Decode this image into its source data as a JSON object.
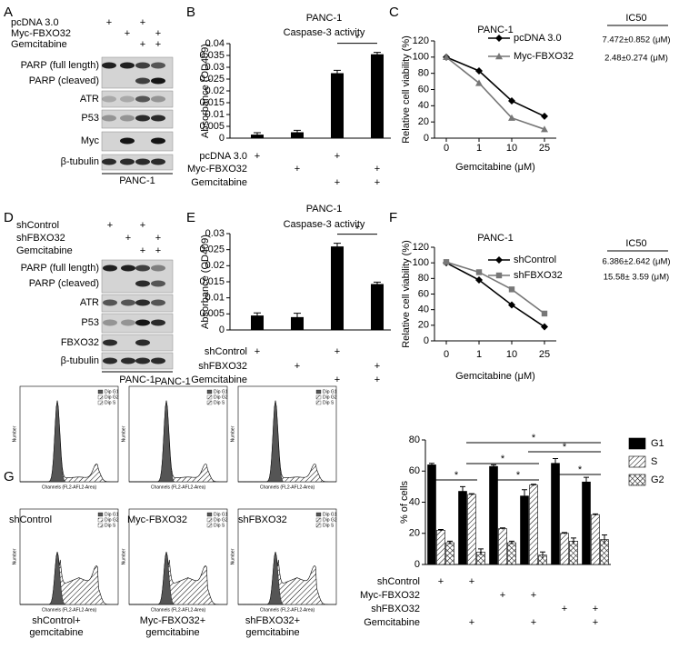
{
  "panel_labels": [
    "A",
    "B",
    "C",
    "D",
    "E",
    "F",
    "G"
  ],
  "blots": [
    {
      "treatments": [
        {
          "label": "pcDNA 3.0",
          "marks": [
            "+",
            null,
            "+",
            null
          ]
        },
        {
          "label": "Myc-FBXO32",
          "marks": [
            null,
            "+",
            null,
            "+"
          ]
        },
        {
          "label": "Gemcitabine",
          "marks": [
            null,
            null,
            "+",
            "+"
          ]
        }
      ],
      "rows": [
        "PARP (full length)",
        "PARP (cleaved)",
        "ATR",
        "P53",
        "Myc",
        "β-tubulin"
      ],
      "cell_line": "PANC-1"
    },
    {
      "treatments": [
        {
          "label": "shControl",
          "marks": [
            "+",
            null,
            "+",
            null
          ]
        },
        {
          "label": "shFBXO32",
          "marks": [
            null,
            "+",
            null,
            "+"
          ]
        },
        {
          "label": "Gemcitabine",
          "marks": [
            null,
            null,
            "+",
            "+"
          ]
        }
      ],
      "rows": [
        "PARP (full length)",
        "PARP (cleaved)",
        "ATR",
        "P53",
        "FBXO32",
        "β-tubulin"
      ],
      "cell_line": "PANC-1"
    }
  ],
  "flow": {
    "title": "PANC-1",
    "x_label": "Channels (FL2-AFL2-Area)",
    "y_label": "Number",
    "legend": [
      "Dip G1",
      "Dip G2",
      "Dip S"
    ],
    "row_labels": [
      "shControl",
      "Myc-FBXO32",
      "shFBXO32"
    ],
    "captions": [
      [
        "shControl+",
        "gemcitabine"
      ],
      [
        "Myc-FBXO32+",
        "gemcitabine"
      ],
      [
        "shFBXO32+",
        "gemcitabine"
      ]
    ]
  },
  "chart_data": [
    {
      "type": "bar",
      "title": "PANC-1",
      "subtitle": "Caspase-3 activity",
      "y_label": "Absorbance (OD409)",
      "values": [
        0.0015,
        0.0025,
        0.0275,
        0.0355
      ],
      "errors": [
        0.0008,
        0.0008,
        0.0012,
        0.0008
      ],
      "color": "#000000",
      "ylim": [
        0,
        0.04
      ],
      "yticks": [
        0,
        0.005,
        0.01,
        0.015,
        0.02,
        0.025,
        0.03,
        0.035,
        0.04
      ],
      "significance": "*",
      "treatments": [
        {
          "label": "pcDNA 3.0",
          "marks": [
            "+",
            null,
            "+",
            null
          ]
        },
        {
          "label": "Myc-FBXO32",
          "marks": [
            null,
            "+",
            null,
            "+"
          ]
        },
        {
          "label": "Gemcitabine",
          "marks": [
            null,
            null,
            "+",
            "+"
          ]
        }
      ]
    },
    {
      "type": "line",
      "title": "PANC-1",
      "x_label": "Gemcitabine (μM)",
      "y_label": "Relative cell viability (%)",
      "categories": [
        "0",
        "1",
        "10",
        "25"
      ],
      "ylim": [
        0,
        120
      ],
      "yticks": [
        0,
        20,
        40,
        60,
        80,
        100,
        120
      ],
      "ic50_title": "IC50",
      "series": [
        {
          "name": "pcDNA 3.0",
          "color": "#000000",
          "marker": "diamond",
          "values": [
            100,
            83,
            46,
            27
          ],
          "ic50": "7.472±0.852 (μM)"
        },
        {
          "name": "Myc-FBXO32",
          "color": "#777777",
          "marker": "triangle",
          "values": [
            100,
            68,
            25,
            11
          ],
          "ic50": "2.48±0.274 (μM)"
        }
      ]
    },
    {
      "type": "bar",
      "title": "PANC-1",
      "subtitle": "Caspase-3 activity",
      "y_label": "Absorbance (OD409)",
      "values": [
        0.0045,
        0.004,
        0.026,
        0.0143
      ],
      "errors": [
        0.0008,
        0.0012,
        0.001,
        0.0006
      ],
      "color": "#000000",
      "ylim": [
        0,
        0.03
      ],
      "yticks": [
        0,
        0.005,
        0.01,
        0.015,
        0.02,
        0.025,
        0.03
      ],
      "significance": "*",
      "treatments": [
        {
          "label": "shControl",
          "marks": [
            "+",
            null,
            "+",
            null
          ]
        },
        {
          "label": "shFBXO32",
          "marks": [
            null,
            "+",
            null,
            "+"
          ]
        },
        {
          "label": "Gemcitabine",
          "marks": [
            null,
            null,
            "+",
            "+"
          ]
        }
      ]
    },
    {
      "type": "line",
      "title": "PANC-1",
      "x_label": "Gemcitabine (μM)",
      "y_label": "Relative cell viability (%)",
      "categories": [
        "0",
        "1",
        "10",
        "25"
      ],
      "ylim": [
        0,
        120
      ],
      "yticks": [
        0,
        20,
        40,
        60,
        80,
        100,
        120
      ],
      "ic50_title": "IC50",
      "series": [
        {
          "name": "shControl",
          "color": "#000000",
          "marker": "diamond",
          "values": [
            100,
            78,
            46,
            18
          ],
          "ic50": "6.386±2.642 (μM)"
        },
        {
          "name": "shFBXO32",
          "color": "#777777",
          "marker": "square",
          "values": [
            101,
            88,
            66,
            35
          ],
          "ic50": "15.58± 3.59 (μM)"
        }
      ]
    },
    {
      "type": "grouped_bar",
      "y_label": "% of cells",
      "ylim": [
        0,
        80
      ],
      "yticks": [
        0,
        20,
        40,
        60,
        80
      ],
      "significance": "*",
      "series": [
        {
          "name": "G1",
          "color": "#000000",
          "fill": "solid",
          "values": [
            64,
            47,
            63,
            44,
            65,
            53
          ],
          "errors": [
            1,
            3,
            1,
            4,
            3,
            3
          ]
        },
        {
          "name": "S",
          "color": "#000000",
          "fill": "hatch",
          "values": [
            22,
            45,
            23,
            51,
            20,
            32
          ],
          "errors": [
            0.5,
            0.5,
            0.5,
            0.5,
            0.5,
            0.5
          ]
        },
        {
          "name": "G2",
          "color": "#000000",
          "fill": "crosshatch",
          "values": [
            14,
            8,
            14,
            6,
            15,
            16
          ],
          "errors": [
            1,
            2,
            1,
            2,
            2,
            3
          ]
        }
      ],
      "treatments": [
        {
          "label": "shControl",
          "marks": [
            "+",
            "+",
            null,
            null,
            null,
            null
          ]
        },
        {
          "label": "Myc-FBXO32",
          "marks": [
            null,
            null,
            "+",
            "+",
            null,
            null
          ]
        },
        {
          "label": "shFBXO32",
          "marks": [
            null,
            null,
            null,
            null,
            "+",
            "+"
          ]
        },
        {
          "label": "Gemcitabine",
          "marks": [
            null,
            "+",
            null,
            "+",
            null,
            "+"
          ]
        }
      ]
    }
  ]
}
